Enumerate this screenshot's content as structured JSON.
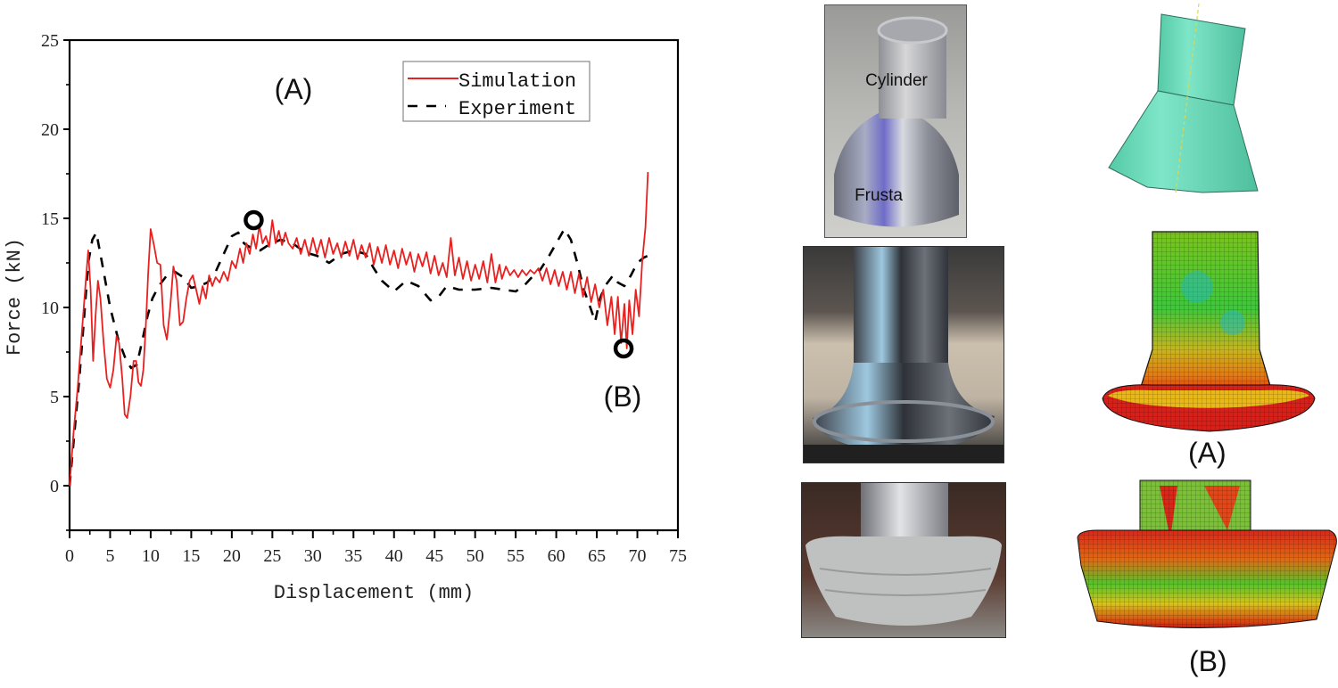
{
  "chart_data": {
    "type": "line",
    "title": "",
    "xlabel": "Displacement (mm)",
    "ylabel": "Force (kN)",
    "xlim": [
      0,
      75
    ],
    "ylim": [
      -2.5,
      25
    ],
    "xticks": [
      0,
      5,
      10,
      15,
      20,
      25,
      30,
      35,
      40,
      45,
      50,
      55,
      60,
      65,
      70,
      75
    ],
    "yticks": [
      0,
      5,
      10,
      15,
      20,
      25
    ],
    "grid": false,
    "legend_position": "upper right",
    "annotations": [
      {
        "text": "(A)",
        "x": 24,
        "y": 22.3
      },
      {
        "text": "(B)",
        "x": 68.5,
        "y": 5.0
      }
    ],
    "markers": [
      {
        "label": "A",
        "x": 22.7,
        "y": 14.9
      },
      {
        "label": "B",
        "x": 68.3,
        "y": 7.7
      }
    ],
    "series": [
      {
        "name": "Simulation",
        "color": "#e8201f",
        "style": "solid",
        "points": [
          [
            0,
            0
          ],
          [
            0.5,
            3
          ],
          [
            1,
            5.5
          ],
          [
            1.5,
            8.5
          ],
          [
            2,
            11.5
          ],
          [
            2.3,
            13.2
          ],
          [
            2.6,
            11
          ],
          [
            2.9,
            7
          ],
          [
            3.2,
            9.5
          ],
          [
            3.5,
            11.5
          ],
          [
            3.8,
            10.5
          ],
          [
            4.2,
            8
          ],
          [
            4.6,
            6
          ],
          [
            5,
            5.5
          ],
          [
            5.4,
            6.5
          ],
          [
            5.8,
            8.4
          ],
          [
            6.1,
            8
          ],
          [
            6.5,
            6
          ],
          [
            6.8,
            4
          ],
          [
            7.1,
            3.8
          ],
          [
            7.5,
            5
          ],
          [
            7.9,
            7
          ],
          [
            8.2,
            7
          ],
          [
            8.5,
            5.8
          ],
          [
            8.8,
            5.6
          ],
          [
            9.1,
            6.5
          ],
          [
            9.4,
            9
          ],
          [
            9.7,
            12
          ],
          [
            10,
            14.4
          ],
          [
            10.4,
            13.5
          ],
          [
            10.8,
            12.5
          ],
          [
            11.2,
            12.4
          ],
          [
            11.6,
            9
          ],
          [
            12,
            8.2
          ],
          [
            12.4,
            10
          ],
          [
            12.8,
            12.3
          ],
          [
            13.2,
            11.5
          ],
          [
            13.6,
            9
          ],
          [
            14,
            9.2
          ],
          [
            14.4,
            10.5
          ],
          [
            14.8,
            11.5
          ],
          [
            15.2,
            11.8
          ],
          [
            15.6,
            11
          ],
          [
            16,
            10.2
          ],
          [
            16.4,
            11.2
          ],
          [
            16.8,
            10.5
          ],
          [
            17.2,
            11.8
          ],
          [
            17.6,
            11.2
          ],
          [
            18,
            11.7
          ],
          [
            18.5,
            11.4
          ],
          [
            19,
            12
          ],
          [
            19.5,
            11.5
          ],
          [
            20,
            12.6
          ],
          [
            20.5,
            12.2
          ],
          [
            21,
            13.3
          ],
          [
            21.4,
            12.5
          ],
          [
            21.8,
            13.6
          ],
          [
            22.2,
            13
          ],
          [
            22.6,
            14.1
          ],
          [
            23,
            13.3
          ],
          [
            23.4,
            14.6
          ],
          [
            23.8,
            13.6
          ],
          [
            24.2,
            14
          ],
          [
            24.6,
            13.4
          ],
          [
            25,
            14.9
          ],
          [
            25.4,
            13.6
          ],
          [
            25.8,
            14.3
          ],
          [
            26.2,
            13.5
          ],
          [
            26.6,
            14.2
          ],
          [
            27,
            13.6
          ],
          [
            27.5,
            13.3
          ],
          [
            28,
            13.9
          ],
          [
            28.5,
            13
          ],
          [
            29,
            13.8
          ],
          [
            29.5,
            12.9
          ],
          [
            30,
            13.9
          ],
          [
            30.5,
            13
          ],
          [
            31,
            13.8
          ],
          [
            31.5,
            12.8
          ],
          [
            32,
            13.9
          ],
          [
            32.5,
            13
          ],
          [
            33,
            13.6
          ],
          [
            33.5,
            12.8
          ],
          [
            34,
            13.7
          ],
          [
            34.5,
            12.9
          ],
          [
            35,
            13.8
          ],
          [
            35.5,
            12.7
          ],
          [
            36,
            13.5
          ],
          [
            36.5,
            12.8
          ],
          [
            37,
            13.6
          ],
          [
            37.5,
            12.4
          ],
          [
            38,
            13.4
          ],
          [
            38.5,
            12.5
          ],
          [
            39,
            13.5
          ],
          [
            39.5,
            12.4
          ],
          [
            40,
            13.2
          ],
          [
            40.5,
            12.2
          ],
          [
            41,
            13.3
          ],
          [
            41.5,
            12.4
          ],
          [
            42,
            13.1
          ],
          [
            42.5,
            12
          ],
          [
            43,
            13
          ],
          [
            43.5,
            12.3
          ],
          [
            44,
            13.1
          ],
          [
            44.5,
            11.9
          ],
          [
            45,
            12.9
          ],
          [
            45.5,
            11.8
          ],
          [
            46,
            12.5
          ],
          [
            46.5,
            11.7
          ],
          [
            47,
            13.9
          ],
          [
            47.5,
            11.8
          ],
          [
            48,
            12.8
          ],
          [
            48.5,
            11.6
          ],
          [
            49,
            12.6
          ],
          [
            49.5,
            11.5
          ],
          [
            50,
            12.4
          ],
          [
            50.5,
            11.6
          ],
          [
            51,
            12.6
          ],
          [
            51.5,
            11.4
          ],
          [
            52,
            13
          ],
          [
            52.5,
            11.4
          ],
          [
            53,
            12.4
          ],
          [
            53.3,
            11.6
          ],
          [
            53.8,
            12.3
          ],
          [
            54.3,
            11.8
          ],
          [
            54.8,
            12.1
          ],
          [
            55.3,
            11.7
          ],
          [
            55.8,
            12.1
          ],
          [
            56.3,
            11.8
          ],
          [
            56.8,
            12.1
          ],
          [
            57.3,
            11.9
          ],
          [
            57.8,
            12.2
          ],
          [
            58.3,
            11.5
          ],
          [
            58.8,
            12.2
          ],
          [
            59.3,
            11.3
          ],
          [
            59.8,
            12.1
          ],
          [
            60.3,
            11.2
          ],
          [
            60.8,
            12
          ],
          [
            61.3,
            11
          ],
          [
            61.8,
            12
          ],
          [
            62.3,
            10.8
          ],
          [
            62.8,
            11.9
          ],
          [
            63.3,
            10.6
          ],
          [
            63.8,
            11.7
          ],
          [
            64.3,
            10.3
          ],
          [
            64.8,
            11.3
          ],
          [
            65.3,
            10
          ],
          [
            65.8,
            11
          ],
          [
            66.3,
            9
          ],
          [
            66.8,
            10.6
          ],
          [
            67.2,
            8.5
          ],
          [
            67.6,
            10.6
          ],
          [
            68,
            8
          ],
          [
            68.4,
            10.2
          ],
          [
            68.7,
            7.7
          ],
          [
            69,
            10.4
          ],
          [
            69.4,
            8.5
          ],
          [
            69.8,
            11
          ],
          [
            70.2,
            9.5
          ],
          [
            70.6,
            12.6
          ],
          [
            71,
            14.5
          ],
          [
            71.3,
            17.6
          ]
        ]
      },
      {
        "name": "Experiment",
        "color": "#000000",
        "style": "dashed",
        "points": [
          [
            0,
            0
          ],
          [
            0.6,
            3
          ],
          [
            1.2,
            6
          ],
          [
            1.8,
            9.5
          ],
          [
            2.3,
            12.5
          ],
          [
            2.8,
            13.8
          ],
          [
            3.3,
            14.2
          ],
          [
            4,
            12.5
          ],
          [
            5,
            10
          ],
          [
            6,
            8.2
          ],
          [
            7,
            7
          ],
          [
            7.6,
            6.6
          ],
          [
            8.3,
            6.8
          ],
          [
            9,
            8.2
          ],
          [
            9.6,
            9.5
          ],
          [
            10.2,
            10.5
          ],
          [
            11,
            11.2
          ],
          [
            12,
            11.8
          ],
          [
            13,
            12
          ],
          [
            14,
            11.7
          ],
          [
            15,
            11.1
          ],
          [
            16,
            11.2
          ],
          [
            17,
            11.4
          ],
          [
            18,
            12
          ],
          [
            19,
            13
          ],
          [
            20,
            14
          ],
          [
            20.8,
            14.2
          ],
          [
            21.5,
            13.6
          ],
          [
            22.5,
            13.3
          ],
          [
            23.5,
            13.2
          ],
          [
            24.5,
            13.5
          ],
          [
            26,
            13.8
          ],
          [
            27.5,
            13.6
          ],
          [
            29,
            13.1
          ],
          [
            30.5,
            12.9
          ],
          [
            32,
            12.5
          ],
          [
            33.5,
            13
          ],
          [
            35,
            13.2
          ],
          [
            36.5,
            13
          ],
          [
            37.5,
            12.2
          ],
          [
            38.5,
            11.5
          ],
          [
            40,
            10.9
          ],
          [
            41.5,
            11.5
          ],
          [
            43,
            11.2
          ],
          [
            44.5,
            10.4
          ],
          [
            45.5,
            10.6
          ],
          [
            46.5,
            11.2
          ],
          [
            48,
            11
          ],
          [
            50,
            11
          ],
          [
            52,
            11.1
          ],
          [
            53.5,
            11
          ],
          [
            55,
            10.9
          ],
          [
            56,
            11.2
          ],
          [
            57,
            11.7
          ],
          [
            58,
            12.1
          ],
          [
            59,
            12.8
          ],
          [
            60,
            13.6
          ],
          [
            61,
            14.4
          ],
          [
            61.8,
            13.8
          ],
          [
            62.6,
            12.5
          ],
          [
            63.4,
            11
          ],
          [
            64.2,
            10
          ],
          [
            64.8,
            9.2
          ],
          [
            65.4,
            10.5
          ],
          [
            66,
            11.2
          ],
          [
            67,
            11.8
          ],
          [
            67.6,
            11.4
          ],
          [
            68.4,
            11.2
          ],
          [
            69.2,
            11.8
          ],
          [
            70,
            12.5
          ],
          [
            70.8,
            12.8
          ],
          [
            71.3,
            12.9
          ]
        ]
      }
    ]
  },
  "figure": {
    "chart_inset_label": "(A)",
    "chart_marker_b_label": "(B)",
    "legend": {
      "simulation": "Simulation",
      "experiment": "Experiment"
    },
    "axis": {
      "xlabel": "Displacement (mm)",
      "ylabel": "Force (kN)"
    },
    "right_panel": {
      "specimen_photo": {
        "label_cylinder": "Cylinder",
        "label_frusta": "Frusta"
      },
      "cad_model": {
        "color": "#6fe0bf"
      },
      "state_a_label": "(A)",
      "state_b_label": "(B)"
    }
  }
}
